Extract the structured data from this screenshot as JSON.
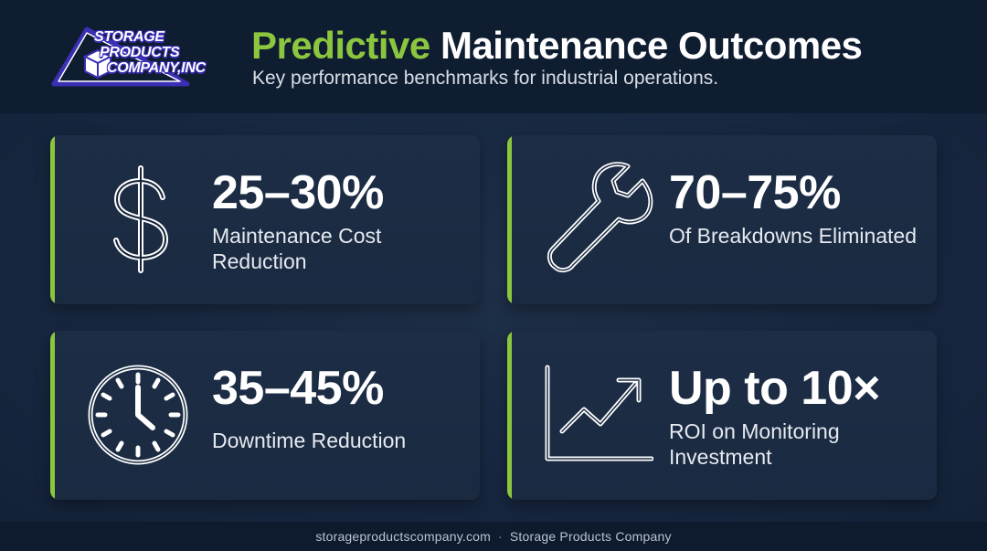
{
  "logo": {
    "line1": "STORAGE",
    "line2": "PRODUCTS",
    "line3": "COMPANY,INC",
    "colors": {
      "outline": "#3b2fb5",
      "fill": "#ffffff"
    }
  },
  "header": {
    "title_accent": "Predictive",
    "title_rest": "Maintenance Outcomes",
    "subtitle": "Key performance benchmarks for industrial operations."
  },
  "cards": [
    {
      "icon": "dollar-sign-icon",
      "value": "25–30%",
      "label": "Maintenance Cost Reduction"
    },
    {
      "icon": "wrench-icon",
      "value": "70–75%",
      "label": "Of Breakdowns Eliminated"
    },
    {
      "icon": "clock-icon",
      "value": "35–45%",
      "label": "Downtime Reduction"
    },
    {
      "icon": "trending-up-chart-icon",
      "value": "Up to 10×",
      "label": "ROI on Monitoring Investment"
    }
  ],
  "footer": {
    "website": "storageproductscompany.com",
    "separator": "·",
    "company": "Storage Products Company"
  },
  "colors": {
    "accent": "#8cc63f",
    "background": "#15233a",
    "card": "#1c2c44",
    "text": "#ffffff"
  }
}
